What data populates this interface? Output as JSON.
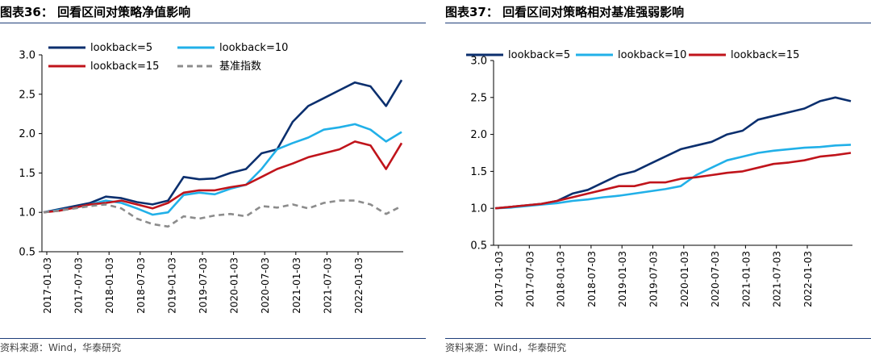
{
  "colors": {
    "navy": "#0b2f6e",
    "light_blue": "#21b0e8",
    "red": "#c0141b",
    "grey": "#8c8c8c",
    "rule": "#1f3f7a"
  },
  "charts": [
    {
      "figure_title": "图表36： 回看区间对策略净值影响",
      "source": "资料来源：Wind，华泰研究"
    },
    {
      "figure_title": "图表37： 回看区间对策略相对基准强弱影响",
      "source": "资料来源：Wind，华泰研究"
    }
  ],
  "chart_data": [
    {
      "type": "line",
      "title": "回看区间对策略净值影响",
      "xlabel": "",
      "ylabel": "",
      "ylim": [
        0.5,
        3.0
      ],
      "yticks": [
        "0.5",
        "1.0",
        "1.5",
        "2.0",
        "2.5",
        "3.0"
      ],
      "xticks": [
        "2017-01-03",
        "2017-07-03",
        "2018-01-03",
        "2018-07-03",
        "2019-01-03",
        "2019-07-03",
        "2020-01-03",
        "2020-07-03",
        "2021-01-03",
        "2021-07-03",
        "2022-01-03"
      ],
      "x": [
        "2017-01",
        "2017-04",
        "2017-07",
        "2017-10",
        "2018-01",
        "2018-04",
        "2018-07",
        "2018-10",
        "2019-01",
        "2019-04",
        "2019-07",
        "2019-10",
        "2020-01",
        "2020-04",
        "2020-07",
        "2020-10",
        "2021-01",
        "2021-04",
        "2021-07",
        "2021-10",
        "2022-01",
        "2022-03",
        "2022-05",
        "2022-07"
      ],
      "legend_position": "top",
      "series": [
        {
          "name": "lookback=5",
          "color": "#0b2f6e",
          "dash": false,
          "values": [
            1.0,
            1.04,
            1.08,
            1.12,
            1.2,
            1.18,
            1.13,
            1.1,
            1.15,
            1.45,
            1.42,
            1.43,
            1.5,
            1.55,
            1.75,
            1.8,
            2.15,
            2.35,
            2.45,
            2.55,
            2.65,
            2.6,
            2.35,
            2.68
          ]
        },
        {
          "name": "lookback=10",
          "color": "#21b0e8",
          "dash": false,
          "values": [
            1.0,
            1.03,
            1.06,
            1.1,
            1.15,
            1.12,
            1.05,
            0.97,
            1.0,
            1.22,
            1.25,
            1.23,
            1.3,
            1.35,
            1.55,
            1.8,
            1.88,
            1.95,
            2.05,
            2.08,
            2.12,
            2.05,
            1.9,
            2.02
          ]
        },
        {
          "name": "lookback=15",
          "color": "#c0141b",
          "dash": false,
          "values": [
            1.0,
            1.02,
            1.06,
            1.1,
            1.12,
            1.15,
            1.1,
            1.05,
            1.12,
            1.25,
            1.28,
            1.28,
            1.32,
            1.35,
            1.45,
            1.55,
            1.62,
            1.7,
            1.75,
            1.8,
            1.9,
            1.85,
            1.55,
            1.88
          ]
        },
        {
          "name": "基准指数",
          "color": "#8c8c8c",
          "dash": true,
          "values": [
            1.0,
            1.02,
            1.05,
            1.08,
            1.1,
            1.05,
            0.92,
            0.85,
            0.82,
            0.95,
            0.92,
            0.96,
            0.98,
            0.95,
            1.08,
            1.06,
            1.1,
            1.05,
            1.12,
            1.15,
            1.15,
            1.1,
            0.98,
            1.08
          ]
        }
      ]
    },
    {
      "type": "line",
      "title": "回看区间对策略相对基准强弱影响",
      "xlabel": "",
      "ylabel": "",
      "ylim": [
        0.5,
        3.0
      ],
      "yticks": [
        "0.5",
        "1.0",
        "1.5",
        "2.0",
        "2.5",
        "3.0"
      ],
      "xticks": [
        "2017-01-03",
        "2017-07-03",
        "2018-01-03",
        "2018-07-03",
        "2019-01-03",
        "2019-07-03",
        "2020-01-03",
        "2020-07-03",
        "2021-01-03",
        "2021-07-03",
        "2022-01-03"
      ],
      "x": [
        "2017-01",
        "2017-04",
        "2017-07",
        "2017-10",
        "2018-01",
        "2018-04",
        "2018-07",
        "2018-10",
        "2019-01",
        "2019-04",
        "2019-07",
        "2019-10",
        "2020-01",
        "2020-04",
        "2020-07",
        "2020-10",
        "2021-01",
        "2021-04",
        "2021-07",
        "2021-10",
        "2022-01",
        "2022-03",
        "2022-05",
        "2022-07"
      ],
      "legend_position": "top",
      "series": [
        {
          "name": "lookback=5",
          "color": "#0b2f6e",
          "dash": false,
          "values": [
            1.0,
            1.02,
            1.04,
            1.06,
            1.1,
            1.2,
            1.25,
            1.35,
            1.45,
            1.5,
            1.6,
            1.7,
            1.8,
            1.85,
            1.9,
            2.0,
            2.05,
            2.2,
            2.25,
            2.3,
            2.35,
            2.45,
            2.5,
            2.45
          ]
        },
        {
          "name": "lookback=10",
          "color": "#21b0e8",
          "dash": false,
          "values": [
            1.0,
            1.01,
            1.03,
            1.05,
            1.07,
            1.1,
            1.12,
            1.15,
            1.17,
            1.2,
            1.23,
            1.26,
            1.3,
            1.45,
            1.55,
            1.65,
            1.7,
            1.75,
            1.78,
            1.8,
            1.82,
            1.83,
            1.85,
            1.86
          ]
        },
        {
          "name": "lookback=15",
          "color": "#c0141b",
          "dash": false,
          "values": [
            1.0,
            1.02,
            1.04,
            1.06,
            1.1,
            1.15,
            1.2,
            1.25,
            1.3,
            1.3,
            1.35,
            1.35,
            1.4,
            1.42,
            1.45,
            1.48,
            1.5,
            1.55,
            1.6,
            1.62,
            1.65,
            1.7,
            1.72,
            1.75
          ]
        }
      ]
    }
  ]
}
